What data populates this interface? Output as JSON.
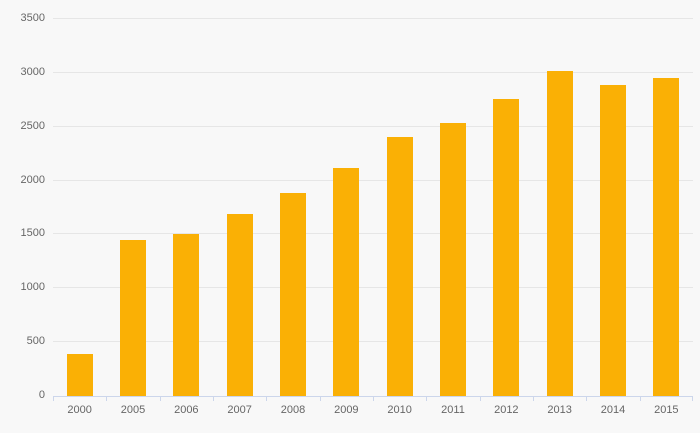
{
  "chart_data": {
    "type": "bar",
    "title": "",
    "xlabel": "",
    "ylabel": "",
    "categories": [
      "2000",
      "2005",
      "2006",
      "2007",
      "2008",
      "2009",
      "2010",
      "2011",
      "2012",
      "2013",
      "2014",
      "2015"
    ],
    "values": [
      390,
      1450,
      1500,
      1690,
      1880,
      2120,
      2400,
      2530,
      2760,
      3020,
      2890,
      2950
    ],
    "ylim": [
      0,
      3500
    ],
    "ytick_step": 500,
    "yticks": [
      0,
      500,
      1000,
      1500,
      2000,
      2500,
      3000,
      3500
    ],
    "grid": true,
    "legend": "none",
    "colors": {
      "bar": "#FAB005",
      "background": "#F8F8F8",
      "gridline": "#E6E6E6",
      "axis_line": "#CCD6EB",
      "label": "#666666"
    }
  }
}
